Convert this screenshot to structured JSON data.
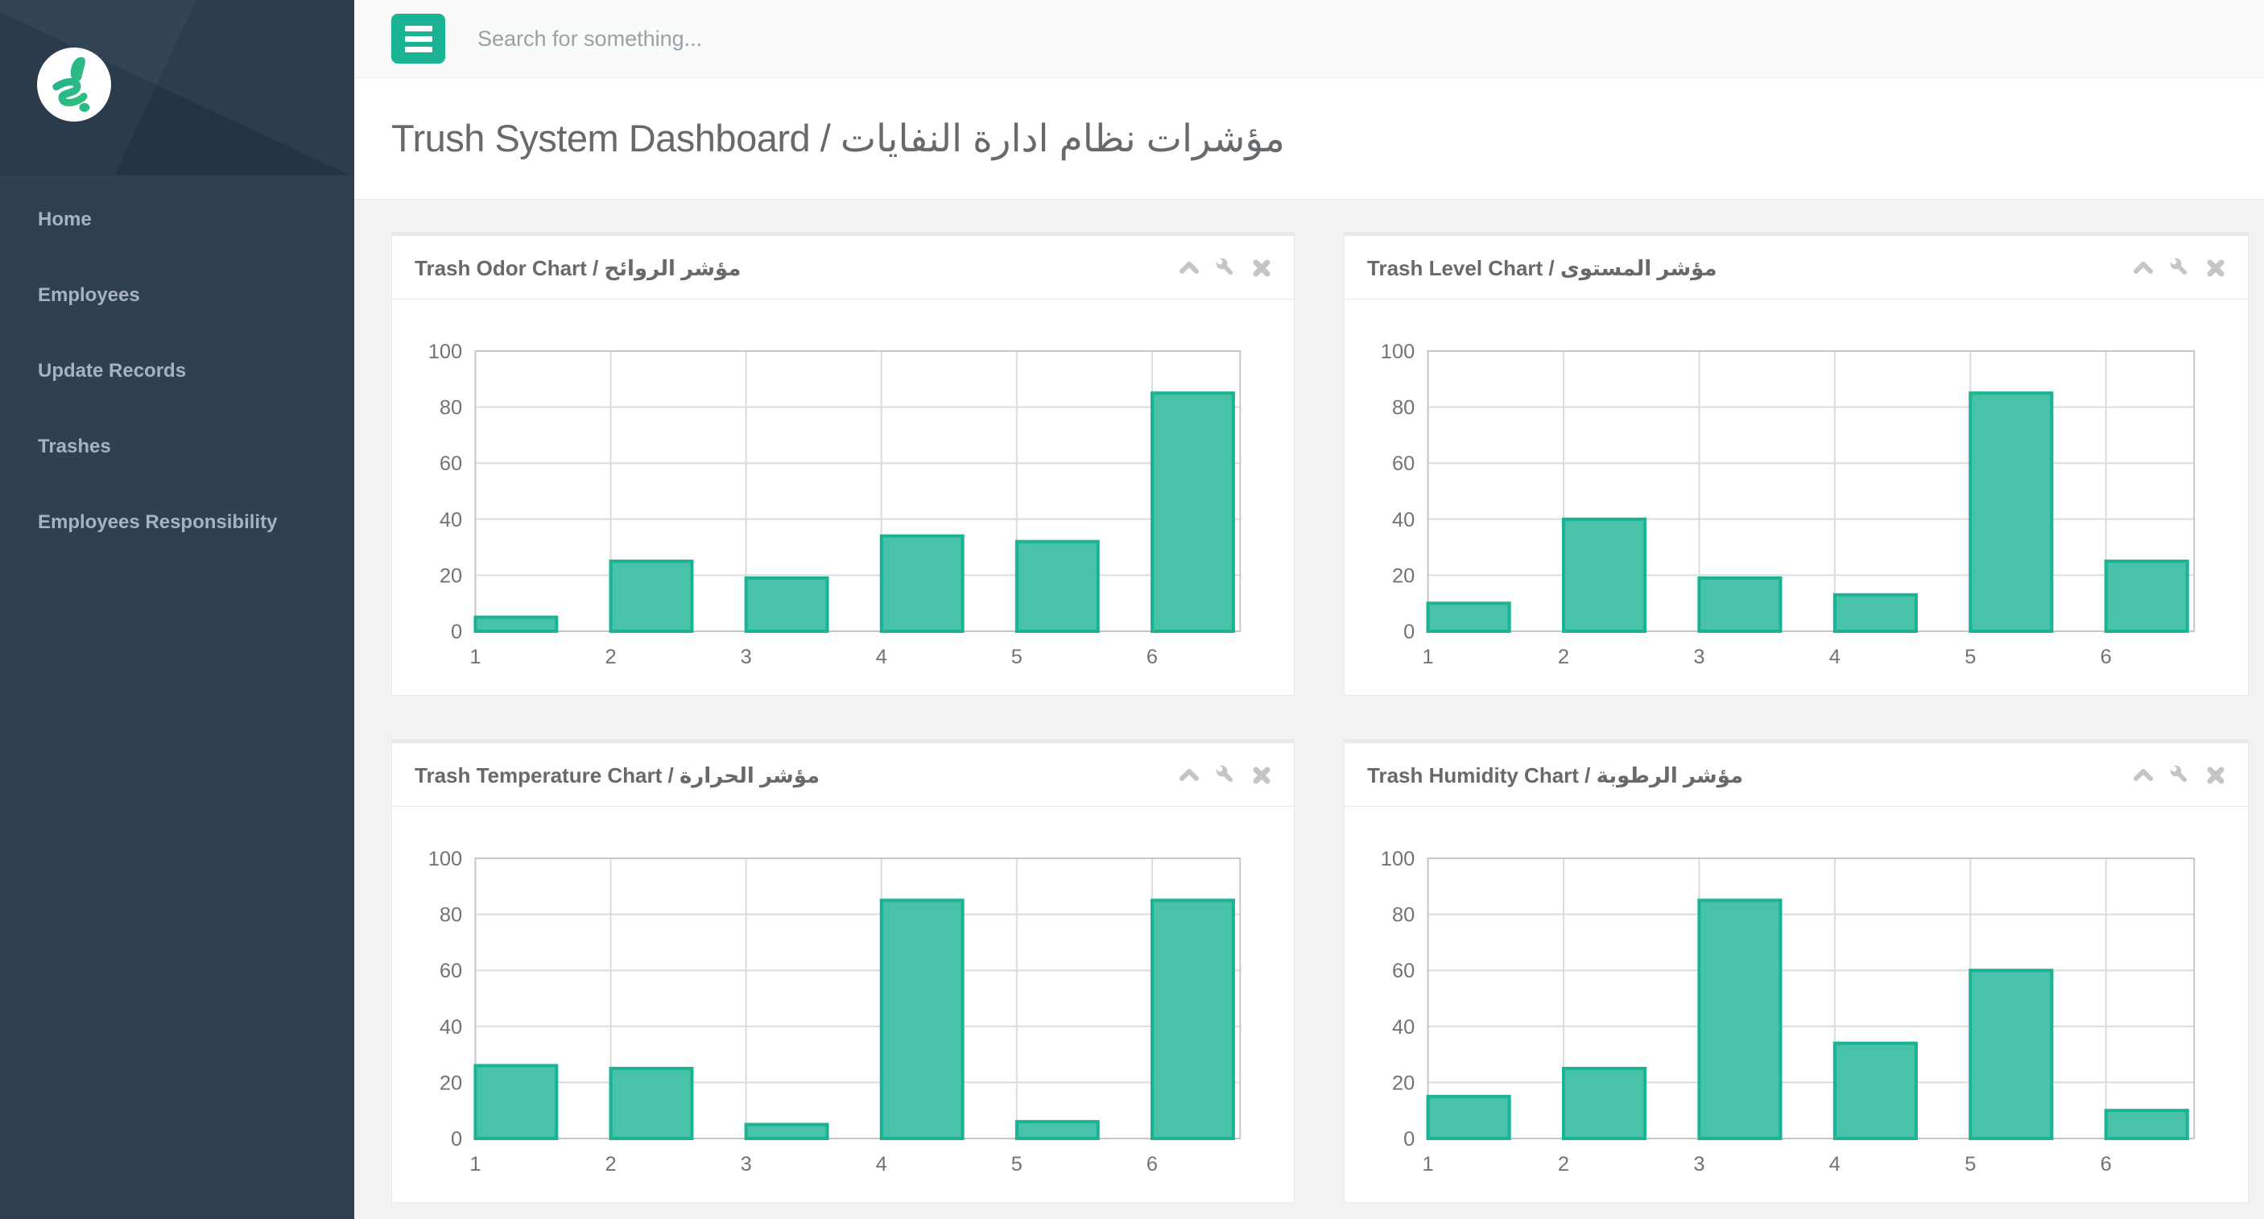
{
  "colors": {
    "accent": "#1ab394",
    "sidebar_bg": "#2f4050",
    "sidebar_header_bg": "#253748",
    "sidebar_text": "#a7b1c2",
    "panel_border": "#e7eaec",
    "content_bg": "#f2f2f3",
    "bar_fill": "#48c2a8",
    "bar_border": "#1ab394",
    "grid_line": "#dcdcdc",
    "grid_border": "#c7c7c7",
    "tool_icon": "#c5c5c5",
    "title_text": "#676a6c"
  },
  "sidebar": {
    "logo_icon": "brand-squiggle-icon",
    "nav_items": [
      {
        "label": "Home"
      },
      {
        "label": "Employees"
      },
      {
        "label": "Update Records"
      },
      {
        "label": "Trashes"
      },
      {
        "label": "Employees Responsibility"
      }
    ]
  },
  "topbar": {
    "menu_icon": "hamburger-icon",
    "search_placeholder": "Search for something..."
  },
  "page": {
    "title": "Trush System Dashboard / مؤشرات نظام ادارة النفايات"
  },
  "panel_tools": {
    "collapse_icon": "chevron-up-icon",
    "settings_icon": "wrench-icon",
    "close_icon": "close-icon"
  },
  "chart_data": [
    {
      "type": "bar",
      "title": "Trash Odor Chart / مؤشر الروائح",
      "categories": [
        "1",
        "2",
        "3",
        "4",
        "5",
        "6"
      ],
      "values": [
        5,
        25,
        19,
        34,
        32,
        85
      ],
      "xlabel": "",
      "ylabel": "",
      "ylim": [
        0,
        100
      ],
      "yticks": [
        0,
        20,
        40,
        60,
        80,
        100
      ],
      "xlim": [
        1,
        6.65
      ],
      "bar_width": 0.6,
      "grid": true,
      "legend": "none",
      "bar_fill": "#48c2a8",
      "bar_border": "#1ab394"
    },
    {
      "type": "bar",
      "title": "Trash Level Chart / مؤشر المستوى",
      "categories": [
        "1",
        "2",
        "3",
        "4",
        "5",
        "6"
      ],
      "values": [
        10,
        40,
        19,
        13,
        85,
        25
      ],
      "xlabel": "",
      "ylabel": "",
      "ylim": [
        0,
        100
      ],
      "yticks": [
        0,
        20,
        40,
        60,
        80,
        100
      ],
      "xlim": [
        1,
        6.65
      ],
      "bar_width": 0.6,
      "grid": true,
      "legend": "none",
      "bar_fill": "#48c2a8",
      "bar_border": "#1ab394"
    },
    {
      "type": "bar",
      "title": "Trash Temperature Chart / مؤشر الحرارة",
      "categories": [
        "1",
        "2",
        "3",
        "4",
        "5",
        "6"
      ],
      "values": [
        26,
        25,
        5,
        85,
        6,
        85
      ],
      "xlabel": "",
      "ylabel": "",
      "ylim": [
        0,
        100
      ],
      "yticks": [
        0,
        20,
        40,
        60,
        80,
        100
      ],
      "xlim": [
        1,
        6.65
      ],
      "bar_width": 0.6,
      "grid": true,
      "legend": "none",
      "bar_fill": "#48c2a8",
      "bar_border": "#1ab394"
    },
    {
      "type": "bar",
      "title": "Trash Humidity Chart / مؤشر الرطوبة",
      "categories": [
        "1",
        "2",
        "3",
        "4",
        "5",
        "6"
      ],
      "values": [
        15,
        25,
        85,
        34,
        60,
        10
      ],
      "xlabel": "",
      "ylabel": "",
      "ylim": [
        0,
        100
      ],
      "yticks": [
        0,
        20,
        40,
        60,
        80,
        100
      ],
      "xlim": [
        1,
        6.65
      ],
      "bar_width": 0.6,
      "grid": true,
      "legend": "none",
      "bar_fill": "#48c2a8",
      "bar_border": "#1ab394"
    }
  ]
}
